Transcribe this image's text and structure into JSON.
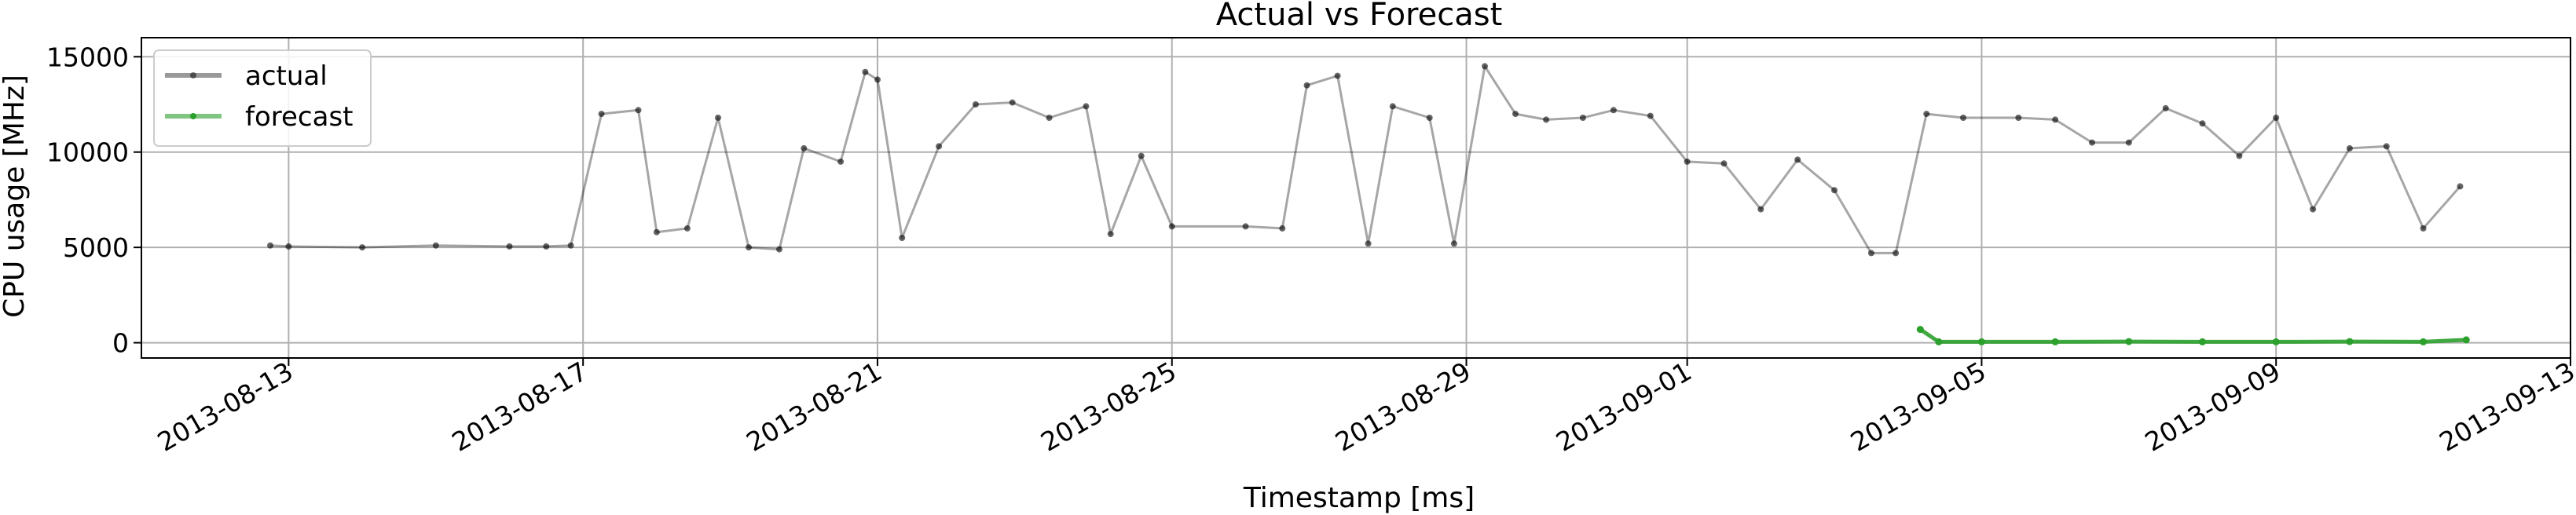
{
  "chart_data": {
    "type": "line",
    "title": "Actual vs Forecast",
    "xlabel": "Timestamp [ms]",
    "ylabel": "CPU usage [MHz]",
    "xlim": [
      "2013-08-11",
      "2013-09-13"
    ],
    "ylim": [
      -800,
      16000
    ],
    "x_ticks": [
      "2013-08-13",
      "2013-08-17",
      "2013-08-21",
      "2013-08-25",
      "2013-08-29",
      "2013-09-01",
      "2013-09-05",
      "2013-09-09",
      "2013-09-13"
    ],
    "y_ticks": [
      0,
      5000,
      10000,
      15000
    ],
    "grid": true,
    "legend_position": "top-left",
    "series": [
      {
        "name": "actual",
        "color": "#000000",
        "x": [
          "2013-08-12 18:00",
          "2013-08-13",
          "2013-08-14",
          "2013-08-15",
          "2013-08-16",
          "2013-08-16 12:00",
          "2013-08-16 20:00",
          "2013-08-17 06:00",
          "2013-08-17 18:00",
          "2013-08-18 00:00",
          "2013-08-18 10:00",
          "2013-08-18 20:00",
          "2013-08-19 06:00",
          "2013-08-19 16:00",
          "2013-08-20 00:00",
          "2013-08-20 12:00",
          "2013-08-20 20:00",
          "2013-08-21 00:00",
          "2013-08-21 08:00",
          "2013-08-21 20:00",
          "2013-08-22 08:00",
          "2013-08-22 20:00",
          "2013-08-23 08:00",
          "2013-08-23 20:00",
          "2013-08-24 04:00",
          "2013-08-24 14:00",
          "2013-08-25 00:00",
          "2013-08-26 00:00",
          "2013-08-26 12:00",
          "2013-08-26 20:00",
          "2013-08-27 06:00",
          "2013-08-27 16:00",
          "2013-08-28 00:00",
          "2013-08-28 12:00",
          "2013-08-28 20:00",
          "2013-08-29 06:00",
          "2013-08-29 16:00",
          "2013-08-30 02:00",
          "2013-08-30 14:00",
          "2013-08-31 00:00",
          "2013-08-31 12:00",
          "2013-09-01 00:00",
          "2013-09-01 12:00",
          "2013-09-02 00:00",
          "2013-09-02 12:00",
          "2013-09-03 00:00",
          "2013-09-03 12:00",
          "2013-09-03 20:00",
          "2013-09-04 06:00",
          "2013-09-04 18:00",
          "2013-09-05 12:00",
          "2013-09-06 00:00",
          "2013-09-06 12:00",
          "2013-09-07 00:00",
          "2013-09-07 12:00",
          "2013-09-08 00:00",
          "2013-09-08 12:00",
          "2013-09-09 00:00",
          "2013-09-09 12:00",
          "2013-09-10 00:00",
          "2013-09-10 12:00",
          "2013-09-11 00:00",
          "2013-09-11 12:00"
        ],
        "values": [
          5100,
          5050,
          5000,
          5100,
          5050,
          5050,
          5100,
          12000,
          12200,
          5800,
          6000,
          11800,
          5000,
          4900,
          10200,
          9500,
          14200,
          13800,
          5500,
          10300,
          12500,
          12600,
          11800,
          12400,
          5700,
          9800,
          6100,
          6100,
          6000,
          13500,
          14000,
          5200,
          12400,
          11800,
          5200,
          14500,
          12000,
          11700,
          11800,
          12200,
          11900,
          9500,
          9400,
          7000,
          9600,
          8000,
          4700,
          4700,
          12000,
          11800,
          11800,
          11700,
          10500,
          10500,
          12300,
          11500,
          9800,
          11800,
          7000,
          10200,
          10300,
          6000,
          8200
        ]
      },
      {
        "name": "forecast",
        "color": "#2ca02c",
        "x": [
          "2013-09-04 04:00",
          "2013-09-04 10:00",
          "2013-09-05 00:00",
          "2013-09-06 00:00",
          "2013-09-07 00:00",
          "2013-09-08 00:00",
          "2013-09-09 00:00",
          "2013-09-10 00:00",
          "2013-09-11 00:00",
          "2013-09-11 14:00"
        ],
        "values": [
          700,
          50,
          50,
          50,
          60,
          50,
          50,
          60,
          50,
          150
        ]
      }
    ]
  }
}
